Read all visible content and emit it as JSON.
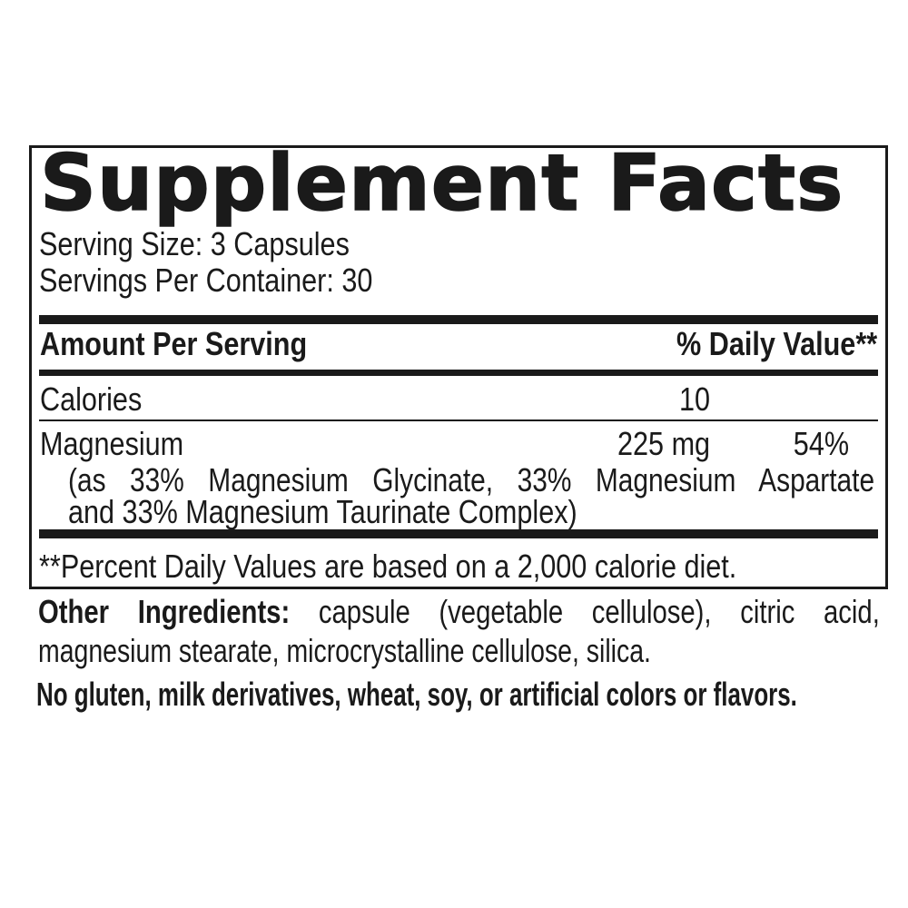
{
  "label": {
    "title": "Supplement Facts",
    "serving_size": "Serving Size: 3 Capsules",
    "servings_per_container": "Servings Per Container: 30",
    "header": {
      "amount": "Amount Per Serving",
      "daily_value": "% Daily Value**"
    },
    "rows": [
      {
        "name": "Calories",
        "amount": "10",
        "daily_value": ""
      },
      {
        "name": "Magnesium",
        "amount": "225 mg",
        "daily_value": "54%",
        "description_line1": "(as 33% Magnesium Glycinate, 33% Magnesium Aspartate Complex",
        "description_line2": "and 33% Magnesium Taurinate Complex)"
      }
    ],
    "footnote": "**Percent Daily Values are based on a 2,000 calorie diet."
  },
  "other_ingredients": {
    "label": "Other Ingredients:",
    "line1_rest": "capsule (vegetable cellulose), citric acid,",
    "line2": "magnesium stearate, microcrystalline cellulose, silica."
  },
  "allergen_statement": "No gluten, milk derivatives, wheat, soy, or artificial colors or flavors.",
  "colors": {
    "text": "#1a1a1a",
    "background": "#ffffff",
    "divider": "#1a1a1a"
  }
}
